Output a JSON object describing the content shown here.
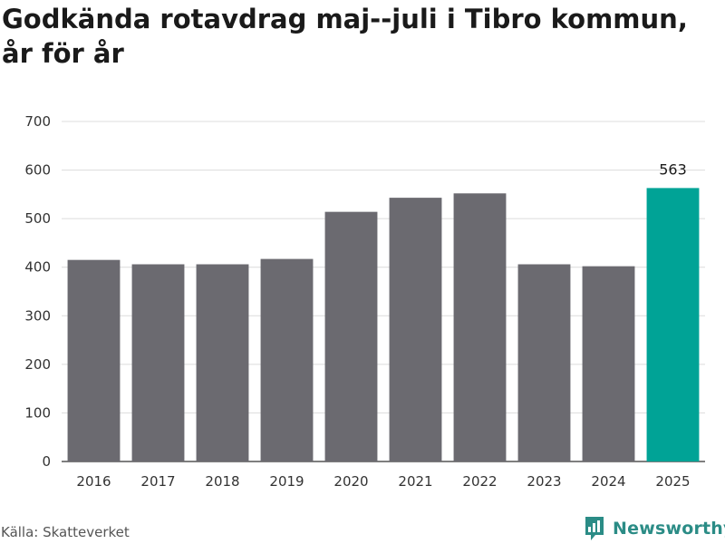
{
  "chart_data": {
    "type": "bar",
    "title": "Godkända rotavdrag maj--juli i Tibro kommun, år för år",
    "xlabel": "",
    "ylabel": "",
    "categories": [
      "2016",
      "2017",
      "2018",
      "2019",
      "2020",
      "2021",
      "2022",
      "2023",
      "2024",
      "2025"
    ],
    "values": [
      415,
      406,
      406,
      417,
      514,
      543,
      552,
      406,
      402,
      563
    ],
    "ylim": [
      0,
      700
    ],
    "yticks": [
      0,
      100,
      200,
      300,
      400,
      500,
      600,
      700
    ],
    "highlight": {
      "category": "2025",
      "label": "563"
    },
    "grid": true,
    "colors": {
      "bar": "#6b6a70",
      "highlight": "#00a396",
      "grid": "#dcdcdc",
      "axis": "#333333"
    }
  },
  "footer": {
    "source": "Källa: Skatteverket",
    "brand": "Newsworthy",
    "brand_icon": "newsworthy-logo-icon"
  }
}
